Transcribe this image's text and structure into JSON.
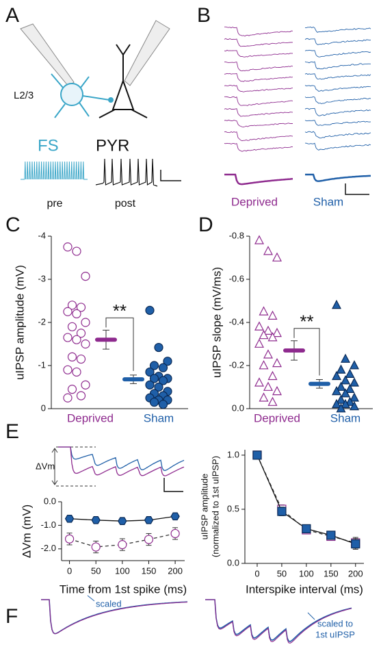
{
  "figure": {
    "panels": [
      "A",
      "B",
      "C",
      "D",
      "E",
      "F"
    ],
    "panel_a": {
      "region": "L2/3",
      "pre_cell": "FS",
      "post_cell": "PYR",
      "pre_label": "pre",
      "post_label": "post"
    },
    "panel_b": {
      "labels": [
        "Deprived",
        "Sham"
      ]
    },
    "panel_f": {
      "left_note": "scaled",
      "right_note": [
        "scaled to",
        "1st uIPSP"
      ]
    }
  },
  "chart_data": [
    {
      "type": "strip",
      "ylabel": "uIPSP amplitude (mV)",
      "categories": [
        "Deprived",
        "Sham"
      ],
      "colors": [
        "#8e2a8e",
        "#1f5fa8"
      ],
      "marker": "circle",
      "filled": [
        false,
        true
      ],
      "values": [
        [
          -3.75,
          -3.65,
          -3.07,
          -2.4,
          -2.35,
          -2.25,
          -2.2,
          -2.0,
          -1.9,
          -1.75,
          -1.65,
          -1.6,
          -1.5,
          -1.2,
          -1.15,
          -0.9,
          -0.85,
          -0.55,
          -0.45,
          -0.3,
          -0.25
        ],
        [
          -2.28,
          -1.42,
          -1.1,
          -1.0,
          -0.95,
          -0.85,
          -0.75,
          -0.7,
          -0.7,
          -0.65,
          -0.55,
          -0.5,
          -0.4,
          -0.35,
          -0.3,
          -0.25,
          -0.2,
          -0.2,
          -0.15,
          -0.1
        ]
      ],
      "means": [
        -1.6,
        -0.68
      ],
      "sems": [
        0.22,
        0.1
      ],
      "significance": "**",
      "ylim": [
        0,
        -4
      ],
      "yticks": [
        0,
        -1,
        -2,
        -3,
        -4
      ]
    },
    {
      "type": "strip",
      "ylabel": "uIPSP slope (mV/ms)",
      "categories": [
        "Deprived",
        "Sham"
      ],
      "colors": [
        "#8e2a8e",
        "#1f5fa8"
      ],
      "marker": "triangle",
      "filled": [
        false,
        true
      ],
      "values": [
        [
          -0.78,
          -0.73,
          -0.7,
          -0.45,
          -0.43,
          -0.38,
          -0.36,
          -0.35,
          -0.34,
          -0.33,
          -0.3,
          -0.25,
          -0.21,
          -0.2,
          -0.15,
          -0.12,
          -0.1,
          -0.08,
          -0.05,
          -0.03
        ],
        [
          -0.48,
          -0.23,
          -0.2,
          -0.18,
          -0.16,
          -0.15,
          -0.13,
          -0.12,
          -0.1,
          -0.09,
          -0.08,
          -0.07,
          -0.05,
          -0.04,
          -0.03,
          -0.02,
          -0.02,
          -0.01,
          0
        ]
      ],
      "means": [
        -0.27,
        -0.115
      ],
      "sems": [
        0.045,
        0.02
      ],
      "significance": "**",
      "ylim": [
        0,
        -0.8
      ],
      "yticks": [
        {
          "value": 0,
          "label": "0.0"
        },
        -0.2,
        -0.4,
        -0.6,
        -0.8
      ]
    },
    {
      "type": "line",
      "inset_label": "ΔVm",
      "xlabel": "Time from 1st spike (ms)",
      "ylabel": "ΔVm (mV)",
      "x": [
        0,
        50,
        100,
        150,
        200
      ],
      "series": [
        {
          "color": "#8e2a8e",
          "marker": "circle",
          "filled": false,
          "dashed": true,
          "values": [
            -1.58,
            -1.92,
            -1.82,
            -1.6,
            -1.35
          ],
          "errors": [
            0.25,
            0.25,
            0.25,
            0.25,
            0.25
          ]
        },
        {
          "color": "#1f5fa8",
          "marker": "hexagon",
          "filled": true,
          "dashed": false,
          "values": [
            -0.72,
            -0.78,
            -0.82,
            -0.78,
            -0.62
          ],
          "errors": [
            0.08,
            0.07,
            0.08,
            0.07,
            0.08
          ]
        }
      ],
      "xlim": [
        -15,
        218
      ],
      "xticks": [
        0,
        50,
        100,
        150,
        200
      ],
      "ylim": [
        -2.5,
        0
      ],
      "yticks": [
        {
          "value": 0,
          "label": "0.0"
        },
        {
          "value": -1,
          "label": "-1.0"
        },
        {
          "value": -2,
          "label": "-2.0"
        }
      ]
    },
    {
      "type": "line",
      "xlabel": "Interspike interval (ms)",
      "ylabel": [
        "uIPSP amplitude",
        "(normalized to 1st uIPSP)"
      ],
      "x": [
        0,
        50,
        100,
        150,
        200
      ],
      "series": [
        {
          "color": "#8e2a8e",
          "marker": "square",
          "filled": false,
          "dashed": true,
          "values": [
            1.0,
            0.5,
            0.31,
            0.25,
            0.19
          ],
          "errors": [
            0.02,
            0.04,
            0.03,
            0.03,
            0.05
          ]
        },
        {
          "color": "#1f5fa8",
          "marker": "square",
          "filled": true,
          "dashed": false,
          "values": [
            1.0,
            0.48,
            0.32,
            0.26,
            0.18
          ],
          "errors": [
            0.02,
            0.04,
            0.03,
            0.03,
            0.05
          ]
        }
      ],
      "xlim": [
        -25,
        217
      ],
      "xticks": [
        0,
        50,
        100,
        150,
        200
      ],
      "ylim": [
        0,
        1.05
      ],
      "yticks": [
        {
          "value": 0,
          "label": "0.0"
        },
        0.5,
        {
          "value": 1,
          "label": "1.0"
        }
      ]
    }
  ]
}
